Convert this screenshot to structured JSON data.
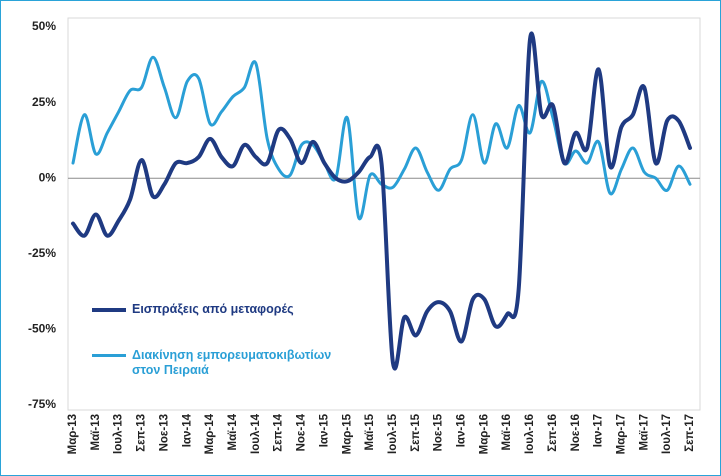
{
  "chart_data": {
    "type": "line",
    "categories": [
      "Μαρ-13",
      null,
      "Μαϊ-13",
      null,
      "Ιουλ-13",
      null,
      "Σεπ-13",
      null,
      "Νοε-13",
      null,
      "Ιαν-14",
      null,
      "Μαρ-14",
      null,
      "Μαϊ-14",
      null,
      "Ιουλ-14",
      null,
      "Σεπ-14",
      null,
      "Νοε-14",
      null,
      "Ιαν-15",
      null,
      "Μαρ-15",
      null,
      "Μαϊ-15",
      null,
      "Ιουλ-15",
      null,
      "Σεπ-15",
      null,
      "Νοε-15",
      null,
      "Ιαν-16",
      null,
      "Μαρ-16",
      null,
      "Μαϊ-16",
      null,
      "Ιουλ-16",
      null,
      "Σεπ-16",
      null,
      "Νοε-16",
      null,
      "Ιαν-17",
      null,
      "Μαρ-17",
      null,
      "Μαϊ-17",
      null,
      "Ιουλ-17",
      null,
      "Σεπ-17"
    ],
    "series": [
      {
        "name": "Εισπράξεις από μεταφορές",
        "color": "#1f3a82",
        "values": [
          -15,
          -19,
          -12,
          -19,
          -14,
          -7,
          6,
          -6,
          -2,
          5,
          5,
          7,
          13,
          7,
          4,
          11,
          7,
          5,
          16,
          13,
          5,
          12,
          5,
          0,
          -1,
          2,
          7,
          5,
          -61,
          -46,
          -52,
          -44,
          -41,
          -44,
          -54,
          -40,
          -40,
          -49,
          -45,
          -37,
          46,
          21,
          24,
          5,
          15,
          10,
          36,
          4,
          17,
          21,
          30,
          5,
          19,
          19,
          10
        ]
      },
      {
        "name": "Διακίνηση εμπορευματοκιβωτίων στον Πειραιά",
        "color": "#2a9fd6",
        "values": [
          5,
          21,
          8,
          15,
          22,
          29,
          30,
          40,
          30,
          20,
          32,
          33,
          18,
          22,
          27,
          30,
          38,
          13,
          3,
          1,
          11,
          11,
          5,
          0,
          20,
          -13,
          1,
          -2,
          -3,
          3,
          10,
          2,
          -4,
          3,
          6,
          21,
          5,
          18,
          10,
          24,
          15,
          32,
          20,
          5,
          9,
          5,
          12,
          -5,
          3,
          10,
          2,
          0,
          -4,
          4,
          -2
        ]
      }
    ],
    "ylim": [
      -75,
      50
    ],
    "yticks": [
      {
        "value": -75,
        "label": "-75%"
      },
      {
        "value": -50,
        "label": "-50%"
      },
      {
        "value": -25,
        "label": "-25%"
      },
      {
        "value": 0,
        "label": "0%"
      },
      {
        "value": 25,
        "label": "25%"
      },
      {
        "value": 50,
        "label": "50%"
      }
    ]
  }
}
